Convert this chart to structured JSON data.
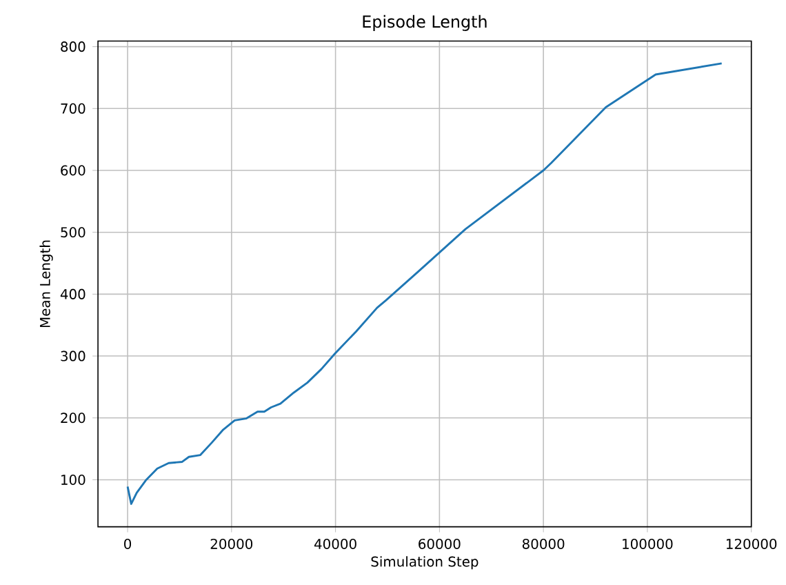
{
  "chart_data": {
    "type": "line",
    "title": "Episode Length",
    "xlabel": "Simulation Step",
    "ylabel": "Mean Length",
    "x": [
      0,
      700,
      1750,
      3500,
      5700,
      7900,
      10500,
      11800,
      14000,
      16200,
      18400,
      20600,
      22800,
      25000,
      26300,
      27600,
      29400,
      32000,
      34600,
      37300,
      39900,
      44000,
      48000,
      49700,
      56000,
      65000,
      80000,
      81500,
      92000,
      101600,
      114300
    ],
    "series": [
      {
        "color": "#1f77b4",
        "values": [
          89,
          61,
          79,
          99,
          118,
          127,
          129,
          137,
          140,
          160,
          181,
          196,
          199,
          210,
          210,
          217,
          223,
          241,
          257,
          279,
          304,
          340,
          378,
          390,
          437,
          505,
          600,
          612,
          702,
          755,
          773
        ]
      }
    ],
    "xlim": [
      -5700,
      120000
    ],
    "ylim": [
      24,
      809
    ],
    "xticks": [
      0,
      20000,
      40000,
      60000,
      80000,
      100000,
      120000
    ],
    "yticks": [
      100,
      200,
      300,
      400,
      500,
      600,
      700,
      800
    ],
    "grid": true
  }
}
